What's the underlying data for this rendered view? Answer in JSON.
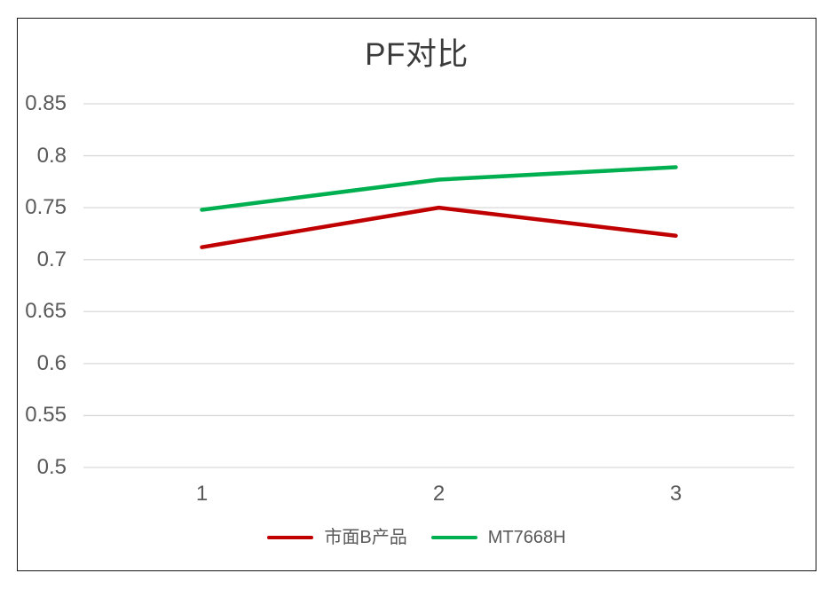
{
  "chart_data": {
    "type": "line",
    "title": "PF对比",
    "categories": [
      "1",
      "2",
      "3"
    ],
    "series": [
      {
        "name": "市面B产品",
        "color": "#c00000",
        "values": [
          0.712,
          0.75,
          0.723
        ]
      },
      {
        "name": "MT7668H",
        "color": "#00b050",
        "values": [
          0.748,
          0.777,
          0.789
        ]
      }
    ],
    "xlabel": "",
    "ylabel": "",
    "ylim": [
      0.5,
      0.85
    ],
    "ytick_step": 0.05,
    "yticks": [
      "0.85",
      "0.8",
      "0.75",
      "0.7",
      "0.65",
      "0.6",
      "0.55",
      "0.5"
    ],
    "grid": true,
    "legend_position": "bottom-center",
    "colors": {
      "gridline": "#d9d9d9",
      "axis_label": "#595959",
      "title": "#3b3b3b",
      "frame_border": "#161616",
      "background": "#ffffff"
    }
  }
}
